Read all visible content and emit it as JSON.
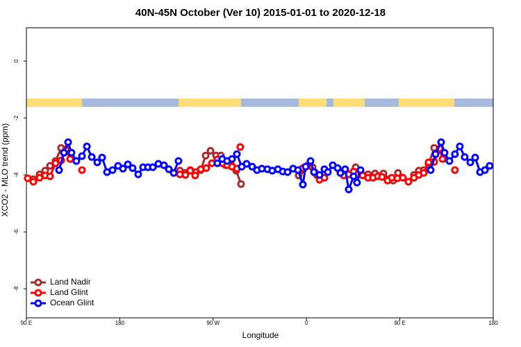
{
  "chart_data": {
    "type": "line",
    "title": "40N-45N October (Ver 10)   2015-01-01 to 2020-12-18",
    "x_label": "Longitude",
    "y_label": "XCO2 - MLO trend (ppm)",
    "xlim": [
      90,
      540
    ],
    "ylim": [
      -9.02,
      1.17
    ],
    "xticks": [
      {
        "value": 90,
        "label": "90 E"
      },
      {
        "value": 180,
        "label": "180"
      },
      {
        "value": 270,
        "label": "90 W"
      },
      {
        "value": 360,
        "label": "0"
      },
      {
        "value": 450,
        "label": "90 E"
      },
      {
        "value": 540,
        "label": "180"
      }
    ],
    "yticks": [
      0,
      -2,
      -4,
      -6,
      -8
    ],
    "legend": "bottom-left",
    "series": [
      {
        "name": "Land Nadir",
        "color": "#a52a2a",
        "x": [
          96.7,
          102.7,
          108.1,
          112.8,
          118.1,
          123.5,
          128.8,
          133.0,
          null,
          238.0,
          242.7,
          248.0,
          253.4,
          258.1,
          262.8,
          267.5,
          272.8,
          277.5,
          282.2,
          287.6,
          292.2,
          296.9,
          null,
          352.5,
          356.5,
          361.2,
          365.9,
          369.9,
          null,
          407.4,
          412.8,
          419.4,
          426.1,
          434.2,
          439.5,
          443.6,
          448.2,
          null,
          463.6,
          468.3,
          473.0,
          477.7,
          483.1,
          488.4,
          491.8
        ],
        "values": [
          -4.15,
          -3.98,
          -3.85,
          -3.68,
          -3.51,
          -3.05,
          -3.12,
          -3.44,
          null,
          -3.85,
          -3.93,
          -3.83,
          -3.9,
          -3.83,
          -3.32,
          -3.15,
          -3.32,
          -3.32,
          -3.66,
          -3.66,
          -3.85,
          -4.32,
          null,
          -4.02,
          -3.83,
          -3.68,
          -3.73,
          -4.0,
          null,
          -3.73,
          -3.95,
          -3.98,
          -3.95,
          -3.95,
          -4.15,
          -4.2,
          -3.93,
          null,
          -4.0,
          -3.85,
          -3.83,
          -3.63,
          -3.05,
          -3.12,
          -3.44
        ]
      },
      {
        "name": "Land Glint",
        "color": "#ff0000",
        "x": [
          91.3,
          96.7,
          102.7,
          108.1,
          112.8,
          118.1,
          123.5,
          128.2,
          132.2,
          null,
          143.6,
          null,
          238.0,
          243.3,
          248.0,
          252.7,
          258.1,
          263.4,
          268.8,
          274.1,
          278.8,
          283.5,
          288.2,
          292.9,
          null,
          296.2,
          null,
          356.5,
          360.5,
          367.9,
          372.6,
          377.3,
          null,
          396.0,
          400.7,
          405.4,
          null,
          414.1,
          419.4,
          424.1,
          428.8,
          432.8,
          438.2,
          442.2,
          447.6,
          452.9,
          458.3,
          463.6,
          468.3,
          473.0,
          477.7,
          483.1,
          488.4,
          491.1,
          null,
          503.1
        ],
        "values": [
          -4.12,
          -4.24,
          -4.1,
          -4.02,
          -4.05,
          -3.59,
          -3.49,
          -3.1,
          -3.44,
          null,
          -3.83,
          null,
          -3.98,
          -4.0,
          -3.85,
          -4.02,
          -3.8,
          -3.76,
          -3.59,
          -3.46,
          -3.59,
          -3.66,
          -3.71,
          -3.78,
          null,
          -3.02,
          null,
          -3.76,
          -3.68,
          -3.9,
          -4.17,
          -4.1,
          null,
          -4.02,
          -3.98,
          -3.88,
          null,
          -4.02,
          -4.1,
          -4.1,
          -4.05,
          -4.07,
          -4.2,
          -4.1,
          -4.12,
          -4.1,
          -4.24,
          -4.1,
          -4.0,
          -3.93,
          -3.56,
          -3.54,
          -3.07,
          -3.44,
          null,
          -3.83
        ]
      },
      {
        "name": "Ocean Glint",
        "color": "#0000ff",
        "x": [
          121.5,
          126.2,
          130.2,
          133.5,
          138.2,
          143.6,
          148.3,
          153.0,
          158.3,
          163.0,
          167.7,
          173.0,
          178.4,
          183.1,
          187.8,
          192.4,
          197.8,
          202.5,
          207.2,
          211.9,
          217.2,
          222.6,
          227.3,
          232.0,
          236.6,
          null,
          274.1,
          278.8,
          283.5,
          288.2,
          292.9,
          297.6,
          302.3,
          307.6,
          312.3,
          317.0,
          322.4,
          327.0,
          332.4,
          337.1,
          341.8,
          347.1,
          351.8,
          356.5,
          359.2,
          363.9,
          367.2,
          372.6,
          377.3,
          380.6,
          385.3,
          390.0,
          392.7,
          397.3,
          400.7,
          405.4,
          408.7,
          412.1,
          null,
          479.7,
          484.4,
          489.8,
          493.1,
          497.8,
          503.1,
          507.8,
          512.5,
          517.9,
          522.6,
          527.3,
          532.0,
          536.6
        ],
        "values": [
          -3.83,
          -3.22,
          -2.85,
          -3.22,
          -3.51,
          -3.34,
          -3.0,
          -3.37,
          -3.56,
          -3.39,
          -3.9,
          -3.83,
          -3.68,
          -3.78,
          -3.63,
          -3.76,
          -3.98,
          -3.73,
          -3.73,
          -3.73,
          -3.61,
          -3.66,
          -3.8,
          -3.93,
          -3.51,
          null,
          -3.59,
          -3.44,
          -3.51,
          -3.44,
          -3.27,
          -3.71,
          -3.61,
          -3.71,
          -3.83,
          -3.78,
          -3.8,
          -3.85,
          -3.8,
          -3.88,
          -3.9,
          -3.78,
          -3.83,
          -4.34,
          -3.71,
          -3.51,
          -3.9,
          -4.0,
          -3.8,
          -3.9,
          -3.66,
          -3.76,
          -3.93,
          -3.8,
          -4.51,
          -4.05,
          -4.27,
          -3.83,
          null,
          -3.83,
          -3.27,
          -2.85,
          -3.22,
          -3.51,
          -3.27,
          -3.0,
          -3.37,
          -3.56,
          -3.39,
          -3.9,
          -3.83,
          -3.68
        ]
      }
    ]
  }
}
